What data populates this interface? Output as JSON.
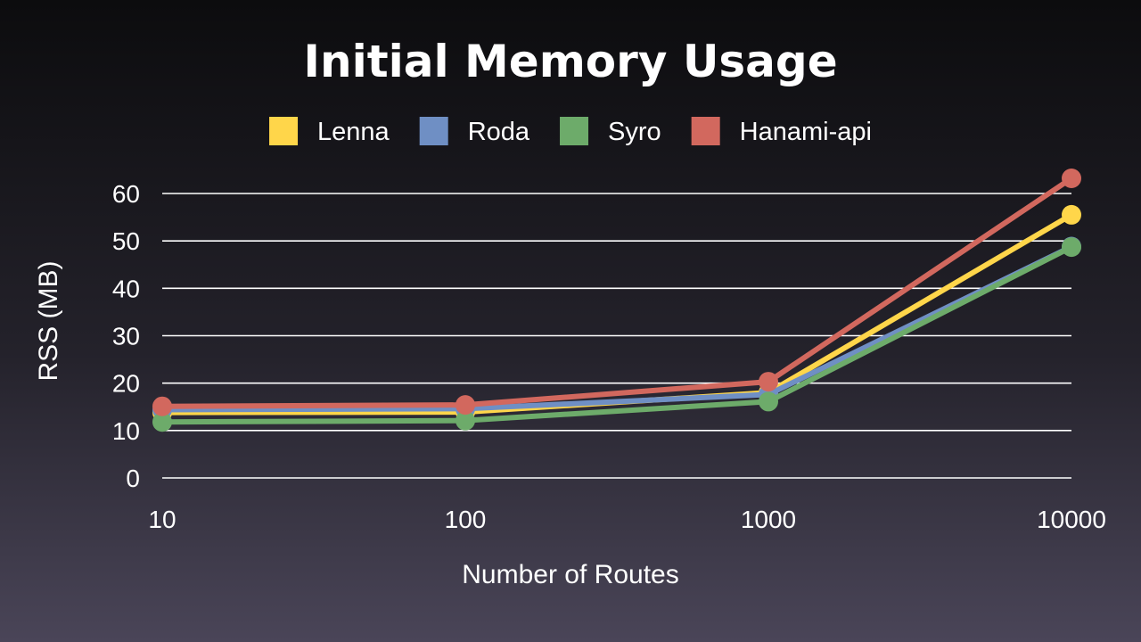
{
  "chart_data": {
    "type": "line",
    "title": "Initial Memory Usage",
    "xlabel": "Number of Routes",
    "ylabel": "RSS (MB)",
    "x_scale": "log",
    "categories": [
      "10",
      "100",
      "1000",
      "10000"
    ],
    "x": [
      10,
      100,
      1000,
      10000
    ],
    "ylim": [
      0,
      60
    ],
    "yticks": [
      0,
      10,
      20,
      30,
      40,
      50,
      60
    ],
    "grid": true,
    "legend_position": "top",
    "series": [
      {
        "name": "Lenna",
        "color": "#ffd64a",
        "values": [
          13.8,
          13.9,
          18.0,
          55.5
        ]
      },
      {
        "name": "Roda",
        "color": "#6f8fc4",
        "values": [
          14.4,
          14.6,
          17.6,
          48.8
        ]
      },
      {
        "name": "Syro",
        "color": "#6dab6a",
        "values": [
          11.8,
          12.1,
          16.1,
          48.7
        ]
      },
      {
        "name": "Hanami-api",
        "color": "#d2685e",
        "values": [
          15.1,
          15.4,
          20.3,
          63.2
        ]
      }
    ]
  }
}
